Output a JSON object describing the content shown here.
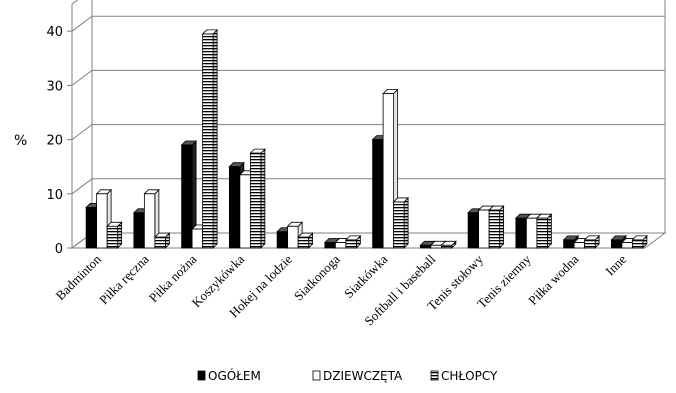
{
  "chart_data": {
    "type": "bar",
    "three_d": true,
    "ylabel": "%",
    "xlabel": "",
    "title": "",
    "ylim": [
      0,
      45
    ],
    "yticks": [
      0,
      10,
      20,
      30,
      40
    ],
    "grid": true,
    "legend_position": "bottom",
    "categories": [
      "Badminton",
      "Piłka ręczna",
      "Piłka nożna",
      "Koszykówka",
      "Hokej na lodzie",
      "Siatkonoga",
      "Siatkówka",
      "Softball i baseball",
      "Tenis stołowy",
      "Tenis ziemny",
      "Piłka wodna",
      "Inne"
    ],
    "series": [
      {
        "name": "OGÓŁEM",
        "style": "solid-black",
        "values": [
          7.5,
          6.5,
          19,
          15,
          3,
          1,
          20,
          0.5,
          6.5,
          5.5,
          1.5,
          1.5
        ]
      },
      {
        "name": "DZIEWCZĘTA",
        "style": "white",
        "values": [
          10,
          10,
          3.5,
          13.5,
          4,
          1,
          28.5,
          0.5,
          7,
          5.5,
          1,
          1
        ]
      },
      {
        "name": "CHŁOPCY",
        "style": "horizontal-stripes",
        "values": [
          4,
          2,
          39.5,
          17.5,
          2,
          1.5,
          8.5,
          0.5,
          7,
          5.5,
          1.5,
          1.5
        ]
      }
    ]
  }
}
